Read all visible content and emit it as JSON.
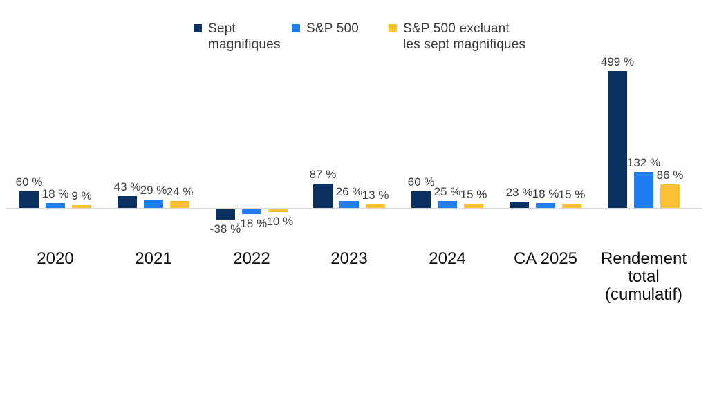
{
  "accent_colors": {
    "navy": "#0a3161",
    "blue": "#1e7df0",
    "yellow": "#fcc234",
    "axis_line": "#d9d9d9",
    "value_label_text": "#3d3d3d",
    "category_text": "#0d0d0d"
  },
  "legend": {
    "items": [
      {
        "label": "Sept\nmagnifiques",
        "color": "#0a3161",
        "x": 280
      },
      {
        "label": "S&P 500",
        "color": "#1e7df0",
        "x": 422
      },
      {
        "label": "S&P 500 excluant\nles sept magnifiques",
        "color": "#fcc234",
        "x": 562
      }
    ]
  },
  "chart_data": {
    "type": "bar",
    "title": "",
    "xlabel": "",
    "ylabel": "",
    "grid": false,
    "legend_position": "top",
    "value_label_format": "{v} %",
    "categories": [
      "2020",
      "2021",
      "2022",
      "2023",
      "2024",
      "CA 2025",
      "Rendement total (cumulatif)"
    ],
    "categories_display": [
      "2020",
      "2021",
      "2022",
      "2023",
      "2024",
      "CA 2025",
      "Rendement\ntotal\n(cumulatif)"
    ],
    "series": [
      {
        "name": "Sept magnifiques",
        "color": "#0a3161",
        "values": [
          60,
          43,
          -38,
          87,
          60,
          23,
          499
        ],
        "labels": [
          "60 %",
          "43 %",
          "-38 %",
          "87 %",
          "60 %",
          "23 %",
          "499 %"
        ]
      },
      {
        "name": "S&P 500",
        "color": "#1e7df0",
        "values": [
          18,
          29,
          -18,
          26,
          25,
          18,
          132
        ],
        "labels": [
          "18 %",
          "29 %",
          "-18 %",
          "26 %",
          "25 %",
          "18 %",
          "132 %"
        ]
      },
      {
        "name": "S&P 500 excluant les sept magnifiques",
        "color": "#fcc234",
        "values": [
          9,
          24,
          -10,
          13,
          15,
          15,
          86
        ],
        "labels": [
          "9 %",
          "24 %",
          "-10 %",
          "13 %",
          "15 %",
          "15 %",
          "86 %"
        ]
      }
    ],
    "ylim": [
      -60,
      520
    ]
  }
}
